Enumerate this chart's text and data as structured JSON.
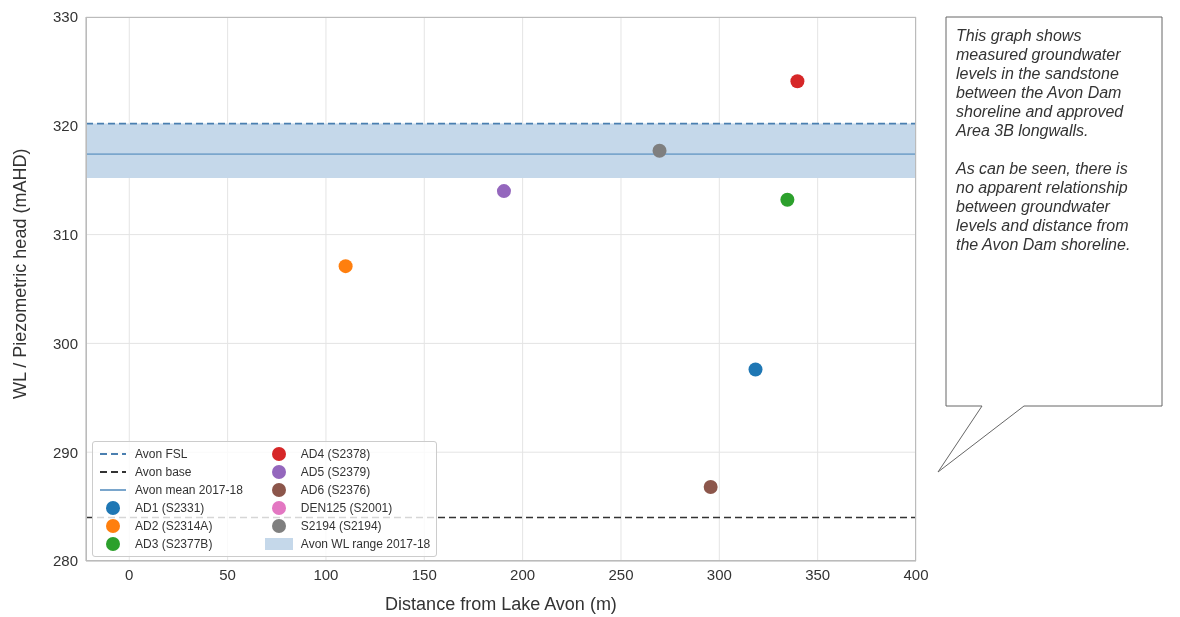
{
  "chart_data": {
    "type": "scatter",
    "xlabel": "Distance from Lake Avon (m)",
    "ylabel": "WL / Piezometric head (mAHD)",
    "xlim": [
      -22,
      400
    ],
    "xticks": [
      0,
      50,
      100,
      150,
      200,
      250,
      300,
      350,
      400
    ],
    "ylim": [
      280,
      330
    ],
    "yticks": [
      280,
      290,
      300,
      310,
      320,
      330
    ],
    "grid": true,
    "legend": "bottom left",
    "marker": "circle",
    "series": [
      {
        "name": "AD1 (S2331)",
        "color": "#1f77b4",
        "x": [
          318.4
        ],
        "values": [
          297.6
        ]
      },
      {
        "name": "AD2 (S2314A)",
        "color": "#ff7f0e",
        "x": [
          110
        ],
        "values": [
          307.1
        ]
      },
      {
        "name": "AD3 (S2377B)",
        "color": "#2ca02c",
        "x": [
          334.6
        ],
        "values": [
          313.2
        ]
      },
      {
        "name": "AD4 (S2378)",
        "color": "#d62728",
        "x": [
          339.7
        ],
        "values": [
          324.1
        ]
      },
      {
        "name": "AD5 (S2379)",
        "color": "#9467bd",
        "x": [
          190.5
        ],
        "values": [
          314.0
        ]
      },
      {
        "name": "AD6 (S2376)",
        "color": "#8c564b",
        "x": [
          295.6
        ],
        "values": [
          286.8
        ]
      },
      {
        "name": "DEN125 (S2001)",
        "color": "#e377c2"
      },
      {
        "name": "S2194 (S2194)",
        "color": "#7f7f7f",
        "x": [
          269.6
        ],
        "values": [
          317.7
        ]
      }
    ],
    "ref_lines": [
      {
        "axis": "y",
        "value": 320.2,
        "label": "Avon FSL",
        "color": "#4a7fb0",
        "line_style": "dashed"
      },
      {
        "axis": "y",
        "value": 284.0,
        "label": "Avon base",
        "color": "#333333",
        "line_style": "dashed"
      },
      {
        "axis": "y",
        "value": 317.4,
        "label": "Avon mean 2017-18",
        "color": "#7aa6cc",
        "line_style": "solid"
      }
    ],
    "bands": [
      {
        "axis": "y",
        "from": 315.2,
        "to": 320.2,
        "label": "Avon WL range 2017-18",
        "color": "#c5d8ea"
      }
    ],
    "annotations": [
      "This graph shows measured groundwater levels in the sandstone between the Avon Dam shoreline and approved Area 3B longwalls.\n\nAs can be seen, there is no apparent relationship between groundwater levels and distance from the Avon Dam shoreline."
    ]
  }
}
